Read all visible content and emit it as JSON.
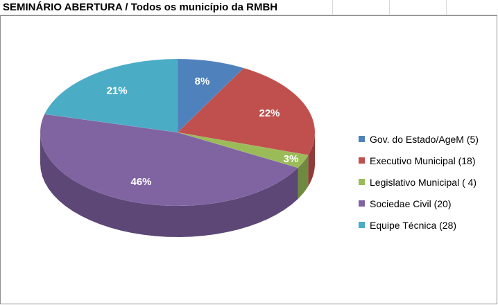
{
  "title": "SEMINÁRIO ABERTURA / Todos os município da RMBH",
  "chart_data": {
    "type": "pie",
    "title": "SEMINÁRIO ABERTURA / Todos os município da RMBH",
    "legend_position": "right",
    "slices": [
      {
        "label": "Gov. do Estado/AgeM (5)",
        "value": 8,
        "display": "8%",
        "color": "#4f81bd",
        "side": "#3a6190"
      },
      {
        "label": "Executivo Municipal (18)",
        "value": 22,
        "display": "22%",
        "color": "#c0504d",
        "side": "#8f3b39"
      },
      {
        "label": "Legislativo Municipal ( 4)",
        "value": 3,
        "display": "3%",
        "color": "#9bbb59",
        "side": "#6f8a3e"
      },
      {
        "label": "Sociedae Civil (20)",
        "value": 46,
        "display": "46%",
        "color": "#8064a2",
        "side": "#5c4776"
      },
      {
        "label": "Equipe Técnica (28)",
        "value": 21,
        "display": "21%",
        "color": "#4bacc6",
        "side": "#33809a"
      }
    ]
  }
}
